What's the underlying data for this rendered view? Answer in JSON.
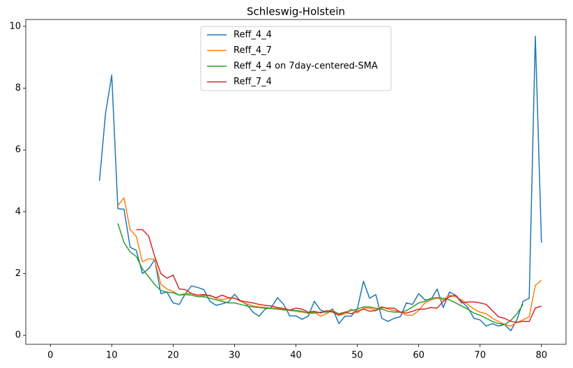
{
  "chart_data": {
    "type": "line",
    "title": "Schleswig-Holstein",
    "x": [
      8,
      9,
      10,
      11,
      12,
      13,
      14,
      15,
      16,
      17,
      18,
      19,
      20,
      21,
      22,
      23,
      24,
      25,
      26,
      27,
      28,
      29,
      30,
      31,
      32,
      33,
      34,
      35,
      36,
      37,
      38,
      39,
      40,
      41,
      42,
      43,
      44,
      45,
      46,
      47,
      48,
      49,
      50,
      51,
      52,
      53,
      54,
      55,
      56,
      57,
      58,
      59,
      60,
      61,
      62,
      63,
      64,
      65,
      66,
      67,
      68,
      69,
      70,
      71,
      72,
      73,
      74,
      75,
      76,
      77,
      78,
      79,
      80
    ],
    "series": [
      {
        "name": "Reff_4_4",
        "color": "#1f77b4",
        "values": [
          5.0,
          7.2,
          8.42,
          4.1,
          4.08,
          2.85,
          2.75,
          2.0,
          2.15,
          2.45,
          1.35,
          1.4,
          1.05,
          1.0,
          1.35,
          1.6,
          1.55,
          1.48,
          1.1,
          0.97,
          1.02,
          1.08,
          1.33,
          1.1,
          1.0,
          0.75,
          0.62,
          0.85,
          0.9,
          1.22,
          1.0,
          0.63,
          0.63,
          0.52,
          0.62,
          1.1,
          0.82,
          0.75,
          0.85,
          0.38,
          0.62,
          0.62,
          0.85,
          1.75,
          1.2,
          1.32,
          0.55,
          0.45,
          0.55,
          0.6,
          1.05,
          1.0,
          1.35,
          1.15,
          1.15,
          1.5,
          0.9,
          1.4,
          1.3,
          1.1,
          0.9,
          0.55,
          0.5,
          0.3,
          0.38,
          0.3,
          0.35,
          0.15,
          0.5,
          1.1,
          1.2,
          9.68,
          3.0
        ]
      },
      {
        "name": "Reff_4_7",
        "color": "#ff7f0e",
        "values": [
          null,
          null,
          null,
          4.2,
          4.45,
          3.42,
          3.2,
          2.38,
          2.48,
          2.45,
          1.65,
          1.5,
          1.42,
          1.3,
          1.35,
          1.35,
          1.3,
          1.28,
          1.3,
          1.2,
          1.15,
          1.2,
          1.2,
          1.1,
          1.02,
          0.95,
          0.92,
          0.9,
          0.88,
          0.87,
          0.85,
          0.8,
          0.78,
          0.75,
          0.72,
          0.75,
          0.62,
          0.7,
          0.82,
          0.65,
          0.7,
          0.85,
          0.72,
          0.88,
          0.88,
          0.82,
          0.93,
          0.85,
          0.8,
          0.75,
          0.65,
          0.65,
          0.8,
          1.05,
          1.15,
          1.2,
          1.15,
          1.3,
          1.25,
          1.15,
          1.0,
          0.85,
          0.75,
          0.7,
          0.55,
          0.45,
          0.35,
          0.3,
          0.42,
          0.5,
          0.6,
          1.62,
          1.78
        ]
      },
      {
        "name": "Reff_4_4 on 7day-centered-SMA",
        "color": "#2ca02c",
        "values": [
          null,
          null,
          null,
          3.62,
          3.0,
          2.7,
          2.55,
          2.15,
          1.9,
          1.65,
          1.45,
          1.4,
          1.38,
          1.3,
          1.32,
          1.3,
          1.25,
          1.25,
          1.2,
          1.15,
          1.1,
          1.05,
          1.05,
          1.0,
          0.95,
          0.92,
          0.9,
          0.88,
          0.87,
          0.85,
          0.82,
          0.82,
          0.8,
          0.78,
          0.72,
          0.72,
          0.75,
          0.75,
          0.78,
          0.7,
          0.75,
          0.8,
          0.85,
          0.92,
          0.92,
          0.88,
          0.85,
          0.78,
          0.75,
          0.75,
          0.8,
          0.92,
          1.05,
          1.1,
          1.2,
          1.22,
          1.2,
          1.15,
          1.05,
          0.95,
          0.85,
          0.72,
          0.65,
          0.55,
          0.45,
          0.38,
          0.35,
          0.48,
          0.7,
          1.0,
          null,
          null,
          null
        ]
      },
      {
        "name": "Reff_7_4",
        "color": "#d62728",
        "values": [
          null,
          null,
          null,
          null,
          null,
          null,
          3.42,
          3.42,
          3.22,
          2.55,
          2.0,
          1.85,
          1.95,
          1.5,
          1.48,
          1.35,
          1.3,
          1.32,
          1.28,
          1.22,
          1.3,
          1.22,
          1.2,
          1.12,
          1.08,
          1.05,
          1.0,
          0.97,
          0.95,
          0.9,
          0.87,
          0.82,
          0.88,
          0.85,
          0.75,
          0.78,
          0.72,
          0.8,
          0.75,
          0.65,
          0.75,
          0.7,
          0.78,
          0.85,
          0.78,
          0.8,
          0.9,
          0.88,
          0.88,
          0.75,
          0.72,
          0.78,
          0.85,
          0.85,
          0.9,
          0.88,
          1.1,
          1.25,
          1.3,
          1.05,
          1.08,
          1.08,
          1.05,
          1.0,
          0.8,
          0.6,
          0.55,
          0.45,
          0.42,
          0.45,
          0.45,
          0.88,
          0.95
        ]
      }
    ],
    "xlim": [
      -4,
      84
    ],
    "ylim": [
      -0.29,
      10.22
    ],
    "xticks": [
      0,
      10,
      20,
      30,
      40,
      50,
      60,
      70,
      80
    ],
    "yticks": [
      0,
      2,
      4,
      6,
      8,
      10
    ],
    "legend": "upper center"
  }
}
